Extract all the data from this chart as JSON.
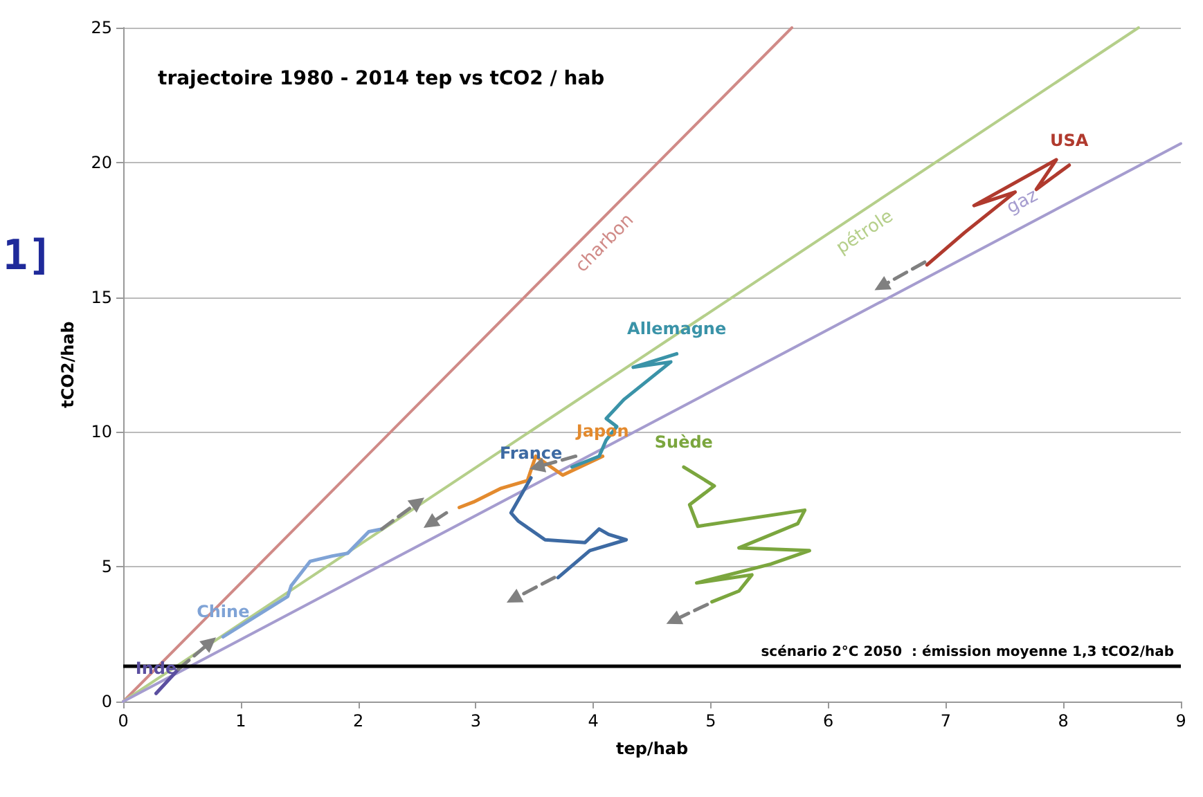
{
  "chart_data": {
    "type": "line",
    "title": "trajectoire 1980 - 2014 tep vs tCO2 / hab",
    "xlabel": "tep/hab",
    "ylabel": "tCO2/hab",
    "xlim": [
      0,
      9
    ],
    "xticks": [
      0,
      1,
      2,
      3,
      4,
      5,
      6,
      7,
      8,
      9
    ],
    "ylim": [
      0,
      25
    ],
    "yticks": [
      0,
      5,
      10,
      15,
      20,
      25
    ],
    "grid": "y",
    "legend": false,
    "marker": "none",
    "annotations": [
      "1]"
    ],
    "ref_lines": [
      {
        "axis": "y",
        "value": 1.3,
        "label": "scénario 2°C 2050  : émission moyenne 1,3 tCO2/hab",
        "color": "#000000"
      }
    ],
    "series": [
      {
        "name": "charbon",
        "color": "#d08a87",
        "x": [
          0,
          5.69
        ],
        "values": [
          0,
          25
        ]
      },
      {
        "name": "pétrole",
        "color": "#b5cf8a",
        "x": [
          0,
          8.64
        ],
        "values": [
          0,
          25
        ]
      },
      {
        "name": "gaz",
        "color": "#a59ccf",
        "x": [
          0,
          9
        ],
        "values": [
          0,
          20.7
        ]
      },
      {
        "name": "Inde",
        "color": "#5b4fa0",
        "x": [
          0.28,
          0.47
        ],
        "values": [
          0.3,
          1.2
        ]
      },
      {
        "name": "Chine",
        "color": "#7fa3d6",
        "x": [
          0.85,
          1.4,
          1.43,
          1.59,
          1.78,
          1.91,
          2.09,
          2.2
        ],
        "values": [
          2.4,
          3.9,
          4.3,
          5.2,
          5.4,
          5.5,
          6.3,
          6.4
        ]
      },
      {
        "name": "Japon",
        "color": "#e38a2e",
        "x": [
          4.08,
          3.74,
          3.51,
          3.44,
          3.21,
          2.98,
          2.86
        ],
        "values": [
          9.1,
          8.4,
          9.1,
          8.2,
          7.9,
          7.4,
          7.2
        ]
      },
      {
        "name": "France",
        "color": "#3d6aa3",
        "x": [
          3.47,
          3.3,
          3.36,
          3.59,
          3.93,
          4.05,
          4.13,
          4.28,
          3.97,
          3.7
        ],
        "values": [
          8.3,
          7,
          6.7,
          6,
          5.9,
          6.4,
          6.2,
          6,
          5.6,
          4.6
        ]
      },
      {
        "name": "Allemagne",
        "color": "#3a93a8",
        "x": [
          4.71,
          4.34,
          4.66,
          4.26,
          4.11,
          4.2,
          4.11,
          4.05,
          3.82
        ],
        "values": [
          12.9,
          12.4,
          12.6,
          11.2,
          10.5,
          10.2,
          9.7,
          9.1,
          8.7
        ]
      },
      {
        "name": "Suède",
        "color": "#7ba63e",
        "x": [
          4.77,
          5.03,
          4.82,
          4.89,
          5.8,
          5.74,
          5.24,
          5.84,
          5.51,
          4.88,
          5.35,
          5.24,
          5.01
        ],
        "values": [
          8.7,
          8,
          7.3,
          6.5,
          7.1,
          6.6,
          5.7,
          5.6,
          5.1,
          4.4,
          4.7,
          4.1,
          3.7
        ]
      },
      {
        "name": "USA",
        "color": "#b03a2e",
        "x": [
          8.05,
          7.77,
          7.94,
          7.24,
          7.59,
          7.16,
          6.84
        ],
        "values": [
          19.9,
          19,
          20.1,
          18.4,
          18.9,
          17.4,
          16.2
        ]
      },
      {
        "color": "#808080",
        "line_style": "dashed",
        "marker": "triangle",
        "x": [
          0.47,
          0.74
        ],
        "values": [
          1.2,
          2.2
        ]
      },
      {
        "color": "#808080",
        "line_style": "dashed",
        "marker": "triangle",
        "x": [
          2.2,
          2.51
        ],
        "values": [
          6.4,
          7.4
        ]
      },
      {
        "color": "#808080",
        "line_style": "dashed",
        "marker": "triangle",
        "x": [
          2.75,
          2.61
        ],
        "values": [
          7,
          6.6
        ]
      },
      {
        "color": "#808080",
        "line_style": "dashed",
        "marker": "triangle",
        "x": [
          3.67,
          3.32
        ],
        "values": [
          4.6,
          3.8
        ]
      },
      {
        "color": "#808080",
        "line_style": "dashed",
        "marker": "triangle",
        "x": [
          3.85,
          3.52
        ],
        "values": [
          9.1,
          8.7
        ]
      },
      {
        "color": "#808080",
        "line_style": "dashed",
        "marker": "triangle",
        "x": [
          4.97,
          4.68
        ],
        "values": [
          3.6,
          3
        ]
      },
      {
        "color": "#808080",
        "line_style": "dashed",
        "marker": "triangle",
        "x": [
          6.82,
          6.45
        ],
        "values": [
          16.3,
          15.4
        ]
      }
    ]
  }
}
